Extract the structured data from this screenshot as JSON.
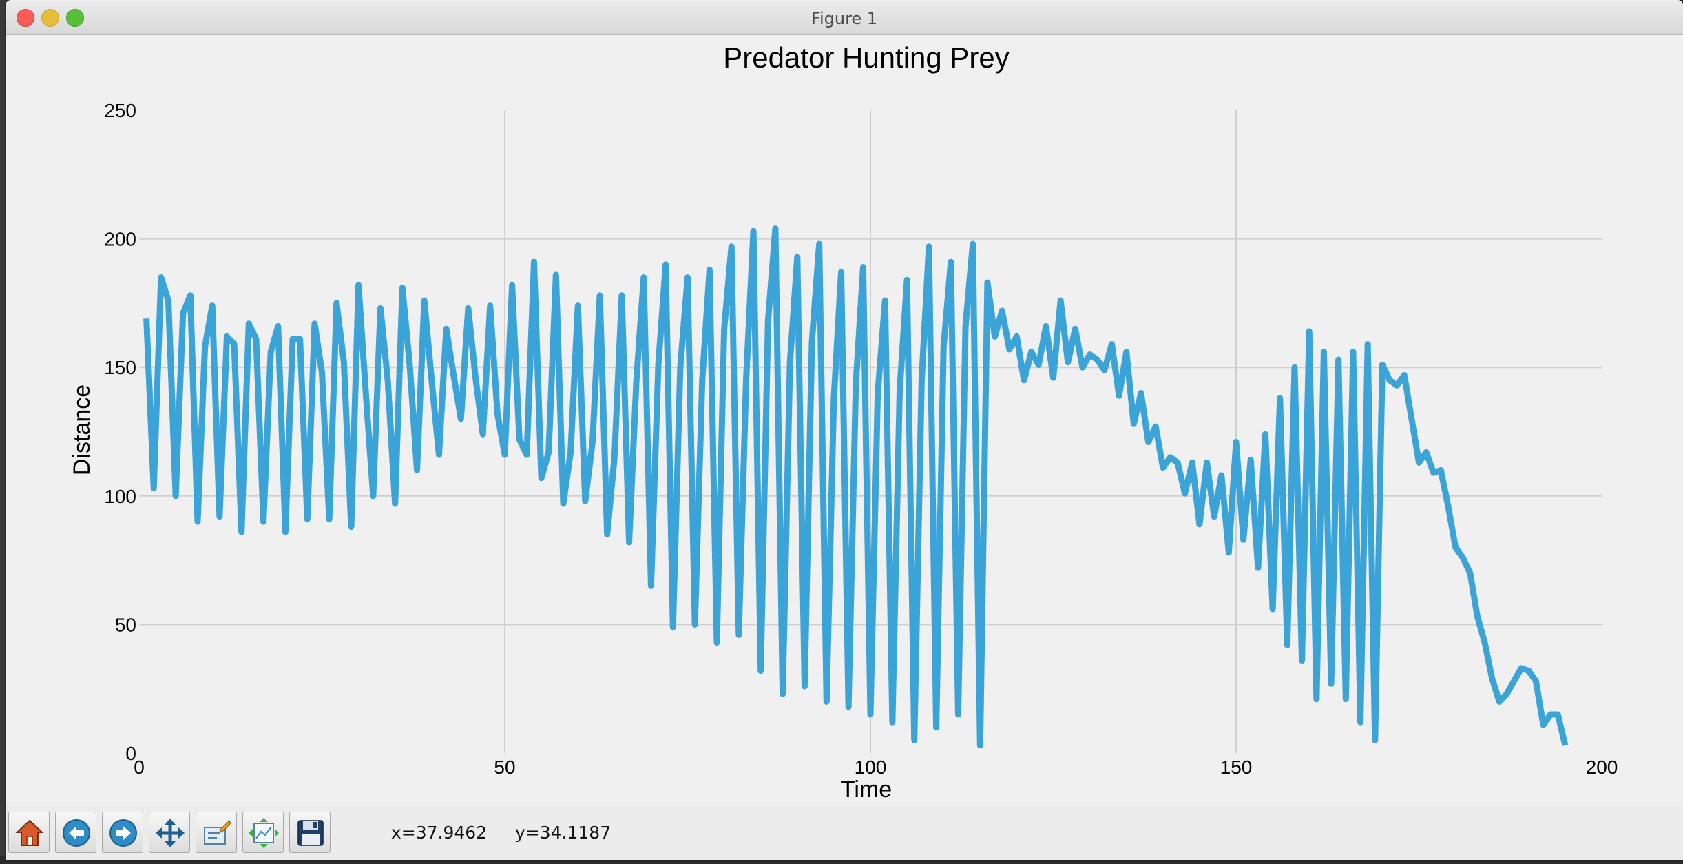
{
  "window": {
    "title": "Figure 1"
  },
  "chart_data": {
    "type": "line",
    "title": "Predator Hunting Prey",
    "xlabel": "Time",
    "ylabel": "Distance",
    "xlim": [
      0,
      200
    ],
    "ylim": [
      0,
      250
    ],
    "xticks": [
      0,
      50,
      100,
      150,
      200
    ],
    "yticks": [
      0,
      50,
      100,
      150,
      200,
      250
    ],
    "grid": true,
    "color": "#3aa3d8",
    "series": [
      {
        "values": [
          169,
          103,
          185,
          176,
          100,
          171,
          178,
          90,
          158,
          174,
          92,
          162,
          159,
          86,
          167,
          161,
          90,
          156,
          166,
          86,
          161,
          161,
          91,
          167,
          148,
          91,
          175,
          152,
          88,
          182,
          140,
          100,
          173,
          145,
          97,
          181,
          151,
          110,
          176,
          145,
          116,
          165,
          147,
          130,
          173,
          146,
          124,
          174,
          132,
          116,
          182,
          122,
          116,
          191,
          107,
          117,
          186,
          97,
          117,
          174,
          98,
          121,
          178,
          85,
          115,
          178,
          82,
          145,
          185,
          65,
          151,
          190,
          49,
          150,
          185,
          50,
          145,
          188,
          43,
          165,
          197,
          46,
          145,
          203,
          32,
          168,
          204,
          23,
          152,
          193,
          26,
          160,
          198,
          20,
          138,
          187,
          18,
          143,
          189,
          15,
          140,
          176,
          12,
          141,
          184,
          5,
          145,
          197,
          10,
          158,
          191,
          15,
          166,
          198,
          3,
          183,
          162,
          172,
          157,
          162,
          145,
          156,
          151,
          166,
          146,
          176,
          152,
          165,
          150,
          155,
          153,
          149,
          159,
          139,
          156,
          128,
          140,
          121,
          127,
          111,
          115,
          113,
          101,
          113,
          89,
          113,
          92,
          108,
          78,
          121,
          83,
          114,
          72,
          124,
          56,
          138,
          42,
          150,
          36,
          164,
          21,
          156,
          27,
          153,
          21,
          156,
          12,
          159,
          5,
          151,
          145,
          143,
          147,
          130,
          113,
          117,
          109,
          110,
          96,
          80,
          76,
          70,
          53,
          43,
          29,
          20,
          23,
          28,
          33,
          32,
          28,
          11,
          15,
          15,
          3
        ]
      }
    ]
  },
  "toolbar": {
    "buttons": [
      {
        "name": "home-button",
        "icon": "home-icon"
      },
      {
        "name": "back-button",
        "icon": "back-arrow-icon"
      },
      {
        "name": "forward-button",
        "icon": "forward-arrow-icon"
      },
      {
        "name": "pan-button",
        "icon": "pan-arrows-icon"
      },
      {
        "name": "zoom-button",
        "icon": "zoom-rect-icon"
      },
      {
        "name": "subplots-button",
        "icon": "subplots-config-icon"
      },
      {
        "name": "save-button",
        "icon": "floppy-disk-icon"
      }
    ],
    "coord_x": "x=37.9462",
    "coord_y": "y=34.1187"
  }
}
